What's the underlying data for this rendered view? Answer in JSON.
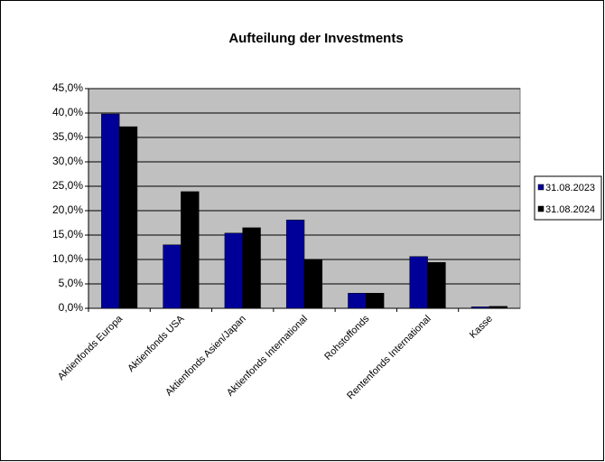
{
  "chart_data": {
    "type": "bar",
    "title": "Aufteilung der Investments",
    "categories": [
      "Aktienfonds Europa",
      "Aktienfonds USA",
      "Aktienfonds Asien/Japan",
      "Aktienfonds International",
      "Rohstoffonds",
      "Rentenfonds International",
      "Kasse"
    ],
    "series": [
      {
        "name": "31.08.2023",
        "color": "#000099",
        "values": [
          39.8,
          13.0,
          15.4,
          18.1,
          3.1,
          10.6,
          0.3
        ]
      },
      {
        "name": "31.08.2024",
        "color": "#000000",
        "values": [
          37.2,
          23.9,
          16.5,
          10.0,
          3.1,
          9.4,
          0.4
        ]
      }
    ],
    "ylim": [
      0,
      45
    ],
    "yticks": [
      {
        "value": 0,
        "label": "0,0%"
      },
      {
        "value": 5,
        "label": "5,0%"
      },
      {
        "value": 10,
        "label": "10,0%"
      },
      {
        "value": 15,
        "label": "15,0%"
      },
      {
        "value": 20,
        "label": "20,0%"
      },
      {
        "value": 25,
        "label": "25,0%"
      },
      {
        "value": 30,
        "label": "30,0%"
      },
      {
        "value": 35,
        "label": "35,0%"
      },
      {
        "value": 40,
        "label": "40,0%"
      },
      {
        "value": 45,
        "label": "45,0%"
      }
    ],
    "grid": true,
    "legend": "right"
  }
}
